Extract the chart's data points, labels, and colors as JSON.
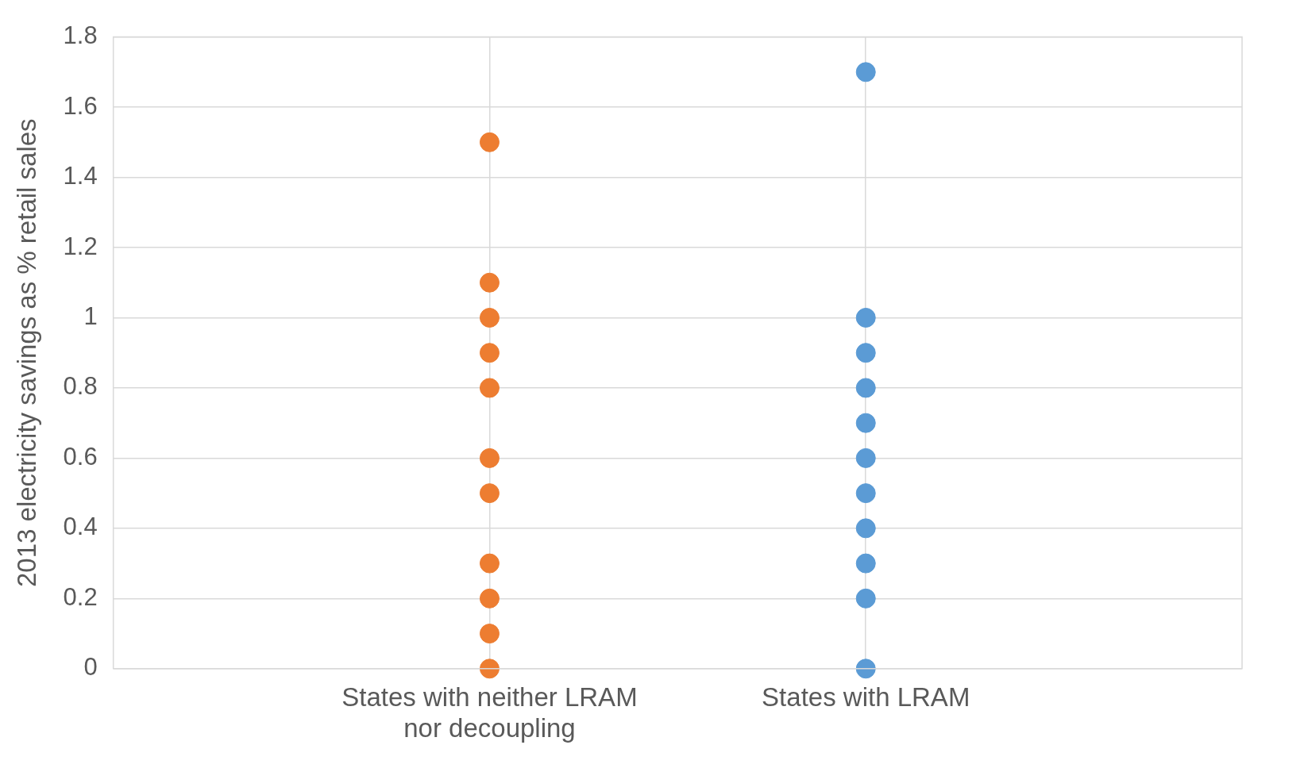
{
  "chart_data": {
    "type": "scatter",
    "ylabel": "2013 electricity savings as % retail sales",
    "categories": [
      "States with neither LRAM nor decoupling",
      "States with LRAM"
    ],
    "series": [
      {
        "color": "#ed7d31",
        "x": [
          "States with neither LRAM nor decoupling",
          "States with neither LRAM nor decoupling",
          "States with neither LRAM nor decoupling",
          "States with neither LRAM nor decoupling",
          "States with neither LRAM nor decoupling",
          "States with neither LRAM nor decoupling",
          "States with neither LRAM nor decoupling",
          "States with neither LRAM nor decoupling",
          "States with neither LRAM nor decoupling",
          "States with neither LRAM nor decoupling",
          "States with neither LRAM nor decoupling"
        ],
        "values": [
          1.5,
          1.1,
          1.0,
          0.9,
          0.8,
          0.6,
          0.5,
          0.3,
          0.2,
          0.1,
          0
        ]
      },
      {
        "color": "#5b9bd5",
        "x": [
          "States with LRAM",
          "States with LRAM",
          "States with LRAM",
          "States with LRAM",
          "States with LRAM",
          "States with LRAM",
          "States with LRAM",
          "States with LRAM",
          "States with LRAM",
          "States with LRAM",
          "States with LRAM"
        ],
        "values": [
          1.7,
          1.0,
          0.9,
          0.8,
          0.7,
          0.6,
          0.5,
          0.4,
          0.3,
          0.2,
          0
        ]
      }
    ],
    "ylim": [
      0,
      1.8
    ],
    "yticks": [
      0,
      0.2,
      0.4,
      0.6,
      0.8,
      1,
      1.2,
      1.4,
      1.6,
      1.8
    ],
    "grid": true,
    "legend": false,
    "marker": "circle"
  }
}
